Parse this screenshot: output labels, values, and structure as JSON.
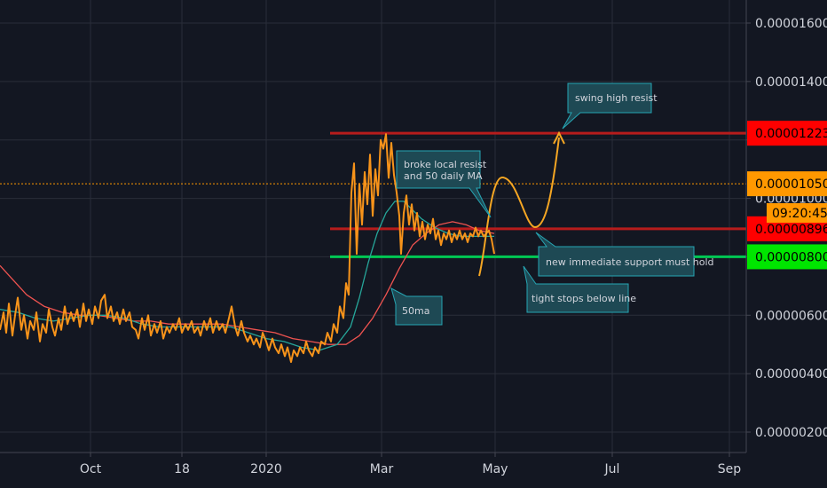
{
  "chart_data": {
    "type": "line",
    "x_labels": [
      "Oct",
      "18",
      "2020",
      "Mar",
      "May",
      "Jul",
      "Sep"
    ],
    "y_ticks": [
      "0.00001600",
      "0.00001400",
      "0.00001200",
      "0.00001000",
      "0.00000800",
      "0.00000600",
      "0.00000400",
      "0.00000200"
    ],
    "y_tick_values": [
      1.6e-05,
      1.4e-05,
      1.2e-05,
      1e-05,
      8e-06,
      6e-06,
      4e-06,
      2e-06
    ],
    "ylim": [
      1.5e-06,
      1.75e-05
    ],
    "grid": true,
    "series": [
      {
        "name": "",
        "color": "#f7931a",
        "points": [
          [
            0,
            5.5e-06
          ],
          [
            4,
            6.1e-06
          ],
          [
            7,
            5.4e-06
          ],
          [
            10,
            6.4e-06
          ],
          [
            14,
            5.3e-06
          ],
          [
            17,
            6e-06
          ],
          [
            20,
            6.6e-06
          ],
          [
            24,
            5.5e-06
          ],
          [
            27,
            6e-06
          ],
          [
            31,
            5.2e-06
          ],
          [
            34,
            5.8e-06
          ],
          [
            38,
            5.5e-06
          ],
          [
            41,
            6.1e-06
          ],
          [
            45,
            5.1e-06
          ],
          [
            48,
            5.7e-06
          ],
          [
            52,
            5.4e-06
          ],
          [
            55,
            6.2e-06
          ],
          [
            59,
            5.6e-06
          ],
          [
            62,
            5.3e-06
          ],
          [
            66,
            5.9e-06
          ],
          [
            69,
            5.5e-06
          ],
          [
            73,
            6.3e-06
          ],
          [
            76,
            5.7e-06
          ],
          [
            80,
            6.1e-06
          ],
          [
            83,
            5.8e-06
          ],
          [
            87,
            6.2e-06
          ],
          [
            90,
            5.6e-06
          ],
          [
            94,
            6.4e-06
          ],
          [
            97,
            5.8e-06
          ],
          [
            100,
            6.2e-06
          ],
          [
            104,
            5.7e-06
          ],
          [
            107,
            6.3e-06
          ],
          [
            111,
            5.9e-06
          ],
          [
            114,
            6.5e-06
          ],
          [
            118,
            6.7e-06
          ],
          [
            121,
            5.9e-06
          ],
          [
            125,
            6.3e-06
          ],
          [
            128,
            5.8e-06
          ],
          [
            132,
            6.1e-06
          ],
          [
            135,
            5.7e-06
          ],
          [
            139,
            6.2e-06
          ],
          [
            142,
            5.8e-06
          ],
          [
            146,
            6.1e-06
          ],
          [
            149,
            5.6e-06
          ],
          [
            153,
            5.5e-06
          ],
          [
            156,
            5.2e-06
          ],
          [
            160,
            5.9e-06
          ],
          [
            163,
            5.5e-06
          ],
          [
            167,
            6e-06
          ],
          [
            170,
            5.3e-06
          ],
          [
            174,
            5.7e-06
          ],
          [
            177,
            5.4e-06
          ],
          [
            181,
            5.8e-06
          ],
          [
            184,
            5.2e-06
          ],
          [
            188,
            5.6e-06
          ],
          [
            191,
            5.4e-06
          ],
          [
            195,
            5.7e-06
          ],
          [
            198,
            5.5e-06
          ],
          [
            202,
            5.9e-06
          ],
          [
            205,
            5.4e-06
          ],
          [
            209,
            5.7e-06
          ],
          [
            212,
            5.5e-06
          ],
          [
            216,
            5.8e-06
          ],
          [
            219,
            5.4e-06
          ],
          [
            223,
            5.6e-06
          ],
          [
            226,
            5.3e-06
          ],
          [
            230,
            5.8e-06
          ],
          [
            233,
            5.5e-06
          ],
          [
            237,
            5.9e-06
          ],
          [
            240,
            5.4e-06
          ],
          [
            244,
            5.8e-06
          ],
          [
            247,
            5.5e-06
          ],
          [
            251,
            5.7e-06
          ],
          [
            254,
            5.4e-06
          ],
          [
            258,
            5.9e-06
          ],
          [
            261,
            6.3e-06
          ],
          [
            265,
            5.6e-06
          ],
          [
            268,
            5.3e-06
          ],
          [
            272,
            5.8e-06
          ],
          [
            275,
            5.4e-06
          ],
          [
            279,
            5.1e-06
          ],
          [
            282,
            5.3e-06
          ],
          [
            286,
            5e-06
          ],
          [
            289,
            5.2e-06
          ],
          [
            293,
            4.9e-06
          ],
          [
            296,
            5.4e-06
          ],
          [
            300,
            5.1e-06
          ],
          [
            303,
            4.8e-06
          ],
          [
            307,
            5.2e-06
          ],
          [
            310,
            4.9e-06
          ],
          [
            314,
            4.7e-06
          ],
          [
            317,
            5e-06
          ],
          [
            321,
            4.6e-06
          ],
          [
            324,
            4.9e-06
          ],
          [
            328,
            4.4e-06
          ],
          [
            331,
            4.8e-06
          ],
          [
            335,
            4.6e-06
          ],
          [
            338,
            4.9e-06
          ],
          [
            342,
            4.7e-06
          ],
          [
            345,
            5.1e-06
          ],
          [
            348,
            4.8e-06
          ],
          [
            352,
            4.6e-06
          ],
          [
            355,
            4.9e-06
          ],
          [
            359,
            4.7e-06
          ],
          [
            362,
            5.1e-06
          ],
          [
            366,
            5e-06
          ],
          [
            369,
            5.4e-06
          ],
          [
            373,
            5.1e-06
          ],
          [
            376,
            5.7e-06
          ],
          [
            380,
            5.4e-06
          ],
          [
            383,
            6.3e-06
          ],
          [
            387,
            5.9e-06
          ],
          [
            390,
            7.1e-06
          ],
          [
            393,
            6.7e-06
          ],
          [
            396,
            1.02e-05
          ],
          [
            399,
            1.12e-05
          ],
          [
            402,
            8.1e-06
          ],
          [
            405,
            1.05e-05
          ],
          [
            408,
            9.1e-06
          ],
          [
            411,
            1.09e-05
          ],
          [
            414,
            9.8e-06
          ],
          [
            417,
            1.15e-05
          ],
          [
            420,
            9.4e-06
          ],
          [
            423,
            1.1e-05
          ],
          [
            426,
            1.01e-05
          ],
          [
            429,
            1.2e-05
          ],
          [
            432,
            1.17e-05
          ],
          [
            435,
            1.22e-05
          ],
          [
            438,
            1.07e-05
          ],
          [
            441,
            1.19e-05
          ],
          [
            444,
            1.08e-05
          ],
          [
            447,
            1.02e-05
          ],
          [
            450,
            9.4e-06
          ],
          [
            452,
            8.1e-06
          ],
          [
            455,
            9.5e-06
          ],
          [
            458,
            1.01e-05
          ],
          [
            461,
            9.1e-06
          ],
          [
            464,
            9.8e-06
          ],
          [
            467,
            8.9e-06
          ],
          [
            470,
            9.5e-06
          ],
          [
            473,
            8.7e-06
          ],
          [
            476,
            9.2e-06
          ],
          [
            479,
            8.6e-06
          ],
          [
            482,
            9.1e-06
          ],
          [
            485,
            8.8e-06
          ],
          [
            488,
            9.3e-06
          ],
          [
            491,
            8.6e-06
          ],
          [
            494,
            8.9e-06
          ],
          [
            497,
            8.4e-06
          ],
          [
            500,
            8.8e-06
          ],
          [
            503,
            8.6e-06
          ],
          [
            506,
            8.9e-06
          ],
          [
            509,
            8.5e-06
          ],
          [
            512,
            8.8e-06
          ],
          [
            515,
            8.6e-06
          ],
          [
            518,
            8.9e-06
          ],
          [
            521,
            8.6e-06
          ],
          [
            524,
            8.8e-06
          ],
          [
            527,
            8.5e-06
          ],
          [
            530,
            8.8e-06
          ],
          [
            533,
            8.7e-06
          ],
          [
            536,
            9e-06
          ],
          [
            539,
            8.7e-06
          ],
          [
            542,
            8.9e-06
          ],
          [
            545,
            8.7e-06
          ],
          [
            548,
            8.8e-06
          ],
          [
            551,
            8.9e-06
          ],
          [
            554,
            8.6e-06
          ],
          [
            557,
            8.1e-06
          ]
        ]
      },
      {
        "name": "",
        "color": "#26a69a",
        "points": [
          [
            0,
            6.2e-06
          ],
          [
            20,
            6.1e-06
          ],
          [
            40,
            5.9e-06
          ],
          [
            60,
            5.8e-06
          ],
          [
            80,
            5.9e-06
          ],
          [
            100,
            6e-06
          ],
          [
            120,
            6e-06
          ],
          [
            140,
            5.9e-06
          ],
          [
            160,
            5.7e-06
          ],
          [
            180,
            5.6e-06
          ],
          [
            200,
            5.6e-06
          ],
          [
            220,
            5.6e-06
          ],
          [
            240,
            5.6e-06
          ],
          [
            260,
            5.6e-06
          ],
          [
            280,
            5.4e-06
          ],
          [
            300,
            5.2e-06
          ],
          [
            320,
            5.1e-06
          ],
          [
            340,
            4.9e-06
          ],
          [
            360,
            4.8e-06
          ],
          [
            380,
            5e-06
          ],
          [
            395,
            5.6e-06
          ],
          [
            405,
            6.6e-06
          ],
          [
            415,
            7.8e-06
          ],
          [
            425,
            8.8e-06
          ],
          [
            435,
            9.5e-06
          ],
          [
            445,
            9.9e-06
          ],
          [
            455,
            9.9e-06
          ],
          [
            465,
            9.6e-06
          ],
          [
            475,
            9.3e-06
          ],
          [
            490,
            9e-06
          ],
          [
            505,
            8.8e-06
          ],
          [
            520,
            8.7e-06
          ],
          [
            535,
            8.7e-06
          ],
          [
            550,
            8.7e-06
          ],
          [
            557,
            8.7e-06
          ]
        ]
      },
      {
        "name": "",
        "color": "#ef5350",
        "points": [
          [
            0,
            7.7e-06
          ],
          [
            15,
            7.2e-06
          ],
          [
            30,
            6.7e-06
          ],
          [
            50,
            6.3e-06
          ],
          [
            70,
            6.1e-06
          ],
          [
            90,
            6e-06
          ],
          [
            110,
            6e-06
          ],
          [
            130,
            5.9e-06
          ],
          [
            150,
            5.8e-06
          ],
          [
            170,
            5.8e-06
          ],
          [
            190,
            5.7e-06
          ],
          [
            210,
            5.7e-06
          ],
          [
            230,
            5.7e-06
          ],
          [
            250,
            5.7e-06
          ],
          [
            270,
            5.6e-06
          ],
          [
            290,
            5.5e-06
          ],
          [
            310,
            5.4e-06
          ],
          [
            330,
            5.2e-06
          ],
          [
            350,
            5.1e-06
          ],
          [
            370,
            5e-06
          ],
          [
            390,
            5e-06
          ],
          [
            405,
            5.3e-06
          ],
          [
            420,
            5.9e-06
          ],
          [
            435,
            6.7e-06
          ],
          [
            450,
            7.6e-06
          ],
          [
            465,
            8.4e-06
          ],
          [
            480,
            8.8e-06
          ],
          [
            495,
            9.1e-06
          ],
          [
            510,
            9.2e-06
          ],
          [
            525,
            9.1e-06
          ],
          [
            540,
            8.9e-06
          ],
          [
            557,
            8.8e-06
          ]
        ]
      }
    ]
  },
  "levels": [
    {
      "value": 1.223e-05,
      "label": "0.00001223",
      "color": "#ff0000",
      "line_color": "#b71c1c",
      "line_style": "solid",
      "text_color": "#000000"
    },
    {
      "value": 1.05e-05,
      "label": "0.00001050",
      "color": "#ff9800",
      "line_color": "#ff9800",
      "line_style": "dotted",
      "text_color": "#000000"
    },
    {
      "value": 8.96e-06,
      "label": "0.00000896",
      "color": "#ff0000",
      "line_color": "#b71c1c",
      "line_style": "solid",
      "text_color": "#000000"
    },
    {
      "value": 8e-06,
      "label": "0.00000800",
      "color": "#00e600",
      "line_color": "#00c853",
      "line_style": "solid",
      "text_color": "#000000"
    }
  ],
  "countdown": "09:20:45",
  "annotations": [
    {
      "lines": [
        "swing high resist"
      ]
    },
    {
      "lines": [
        "broke local resist",
        "and 50 daily MA"
      ]
    },
    {
      "lines": [
        "new immediate support must hold"
      ]
    },
    {
      "lines": [
        "tight stops below line"
      ]
    },
    {
      "lines": [
        "50ma"
      ]
    }
  ],
  "colors": {
    "background": "#131722",
    "grid": "#2a2e39",
    "price_line": "#f7931a",
    "ma_teal": "#26a69a",
    "ma_red": "#ef5350",
    "note_fill": "#1e4954",
    "note_stroke": "#26a6b4",
    "projection": "#f5a623"
  }
}
